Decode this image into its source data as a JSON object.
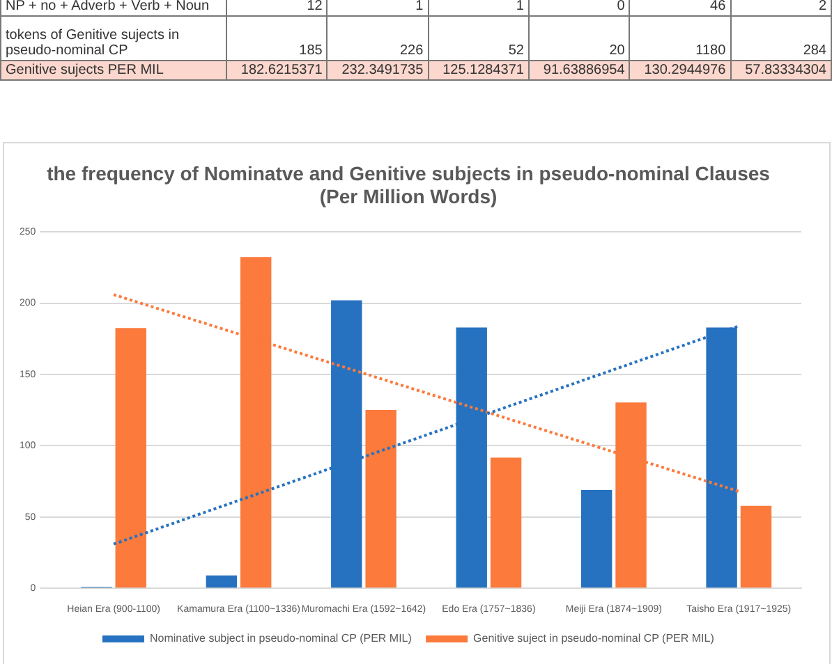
{
  "chart_data": {
    "type": "bar",
    "title": "the frequency of Nominatve and Genitive subjects in pseudo-nominal Clauses\n(Per Million Words)",
    "categories": [
      "Heian Era (900-1100)",
      "Kamamura Era (1100~1336)",
      "Muromachi Era (1592~1642)",
      "Edo Era (1757~1836)",
      "Meiji Era (1874~1909)",
      "Taisho Era (1917~1925)"
    ],
    "series": [
      {
        "name": "Nominative subject in pseudo-nominal CP (PER MIL)",
        "color": "#2672c0",
        "values": [
          1,
          9,
          202,
          183,
          69,
          183
        ]
      },
      {
        "name": "Genitive suject in pseudo-nominal CP (PER MIL)",
        "color": "#fb7a3c",
        "values": [
          182.6215371,
          232.3491735,
          125.1284371,
          91.63886954,
          130.2944976,
          57.83334304
        ]
      },
      {
        "type": "line",
        "color": "#2672c0",
        "x": [
          "Heian Era (900-1100)",
          "Taisho Era (1917~1925)"
        ],
        "values": [
          31,
          184
        ],
        "line_style": "dotted"
      },
      {
        "type": "line",
        "color": "#fb7a3c",
        "x": [
          "Heian Era (900-1100)",
          "Taisho Era (1917~1925)"
        ],
        "values": [
          206,
          68
        ],
        "line_style": "dotted"
      }
    ],
    "ylim": [
      0,
      250
    ],
    "yticks": [
      0,
      50,
      100,
      150,
      200,
      250
    ],
    "grid": "y",
    "legend": "bottom",
    "annotations": [
      "NP + no + Adverb + Verb + Noun",
      "12",
      "1",
      "1",
      "0",
      "46",
      "2",
      "tokens of Genitive sujects  in pseudo-nominal CP",
      "185",
      "226",
      "52",
      "20",
      "1180",
      "284",
      "Genitive sujects PER MIL",
      "182.6215371",
      "232.3491735",
      "125.1284371",
      "91.63886954",
      "130.2944976",
      "57.83334304"
    ]
  }
}
